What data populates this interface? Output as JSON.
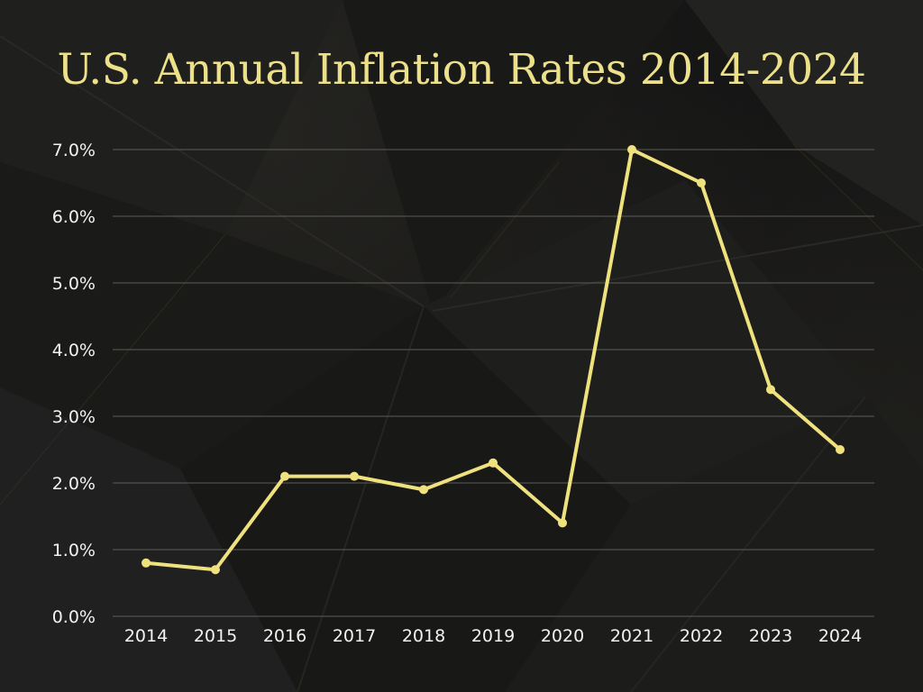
{
  "colors": {
    "title": "#ECE08A",
    "line": "#EFE27E",
    "grid": "#5C5C58",
    "tick_text": "#F2F2F2",
    "background": "#151515"
  },
  "chart_data": {
    "type": "line",
    "title": "U.S. Annual Inflation Rates 2014-2024",
    "xlabel": "",
    "ylabel": "",
    "x": [
      "2014",
      "2015",
      "2016",
      "2017",
      "2018",
      "2019",
      "2020",
      "2021",
      "2022",
      "2023",
      "2024"
    ],
    "series": [
      {
        "values": [
          0.8,
          0.7,
          2.1,
          2.1,
          1.9,
          2.3,
          1.4,
          7.0,
          6.5,
          3.4,
          2.5
        ]
      }
    ],
    "ylim": [
      0,
      7
    ],
    "yticks": [
      0,
      1,
      2,
      3,
      4,
      5,
      6,
      7
    ],
    "ytick_labels": [
      "0.0%",
      "1.0%",
      "2.0%",
      "3.0%",
      "4.0%",
      "5.0%",
      "6.0%",
      "7.0%"
    ],
    "grid": true,
    "markers": true,
    "legend": "none"
  }
}
